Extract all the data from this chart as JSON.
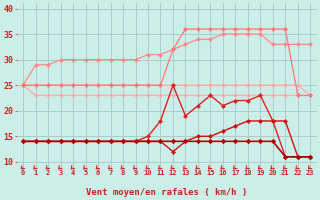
{
  "background_color": "#cceee8",
  "grid_color": "#aacccc",
  "xlim": [
    -0.5,
    23.5
  ],
  "ylim": [
    9,
    41
  ],
  "yticks": [
    10,
    15,
    20,
    25,
    30,
    35,
    40
  ],
  "xlabel": "Vent moyen/en rafales ( km/h )",
  "x_labels": [
    "0",
    "1",
    "2",
    "3",
    "4",
    "5",
    "6",
    "7",
    "8",
    "9",
    "10",
    "11",
    "12",
    "13",
    "14",
    "15",
    "16",
    "17",
    "18",
    "19",
    "20",
    "21",
    "22",
    "23"
  ],
  "series": [
    {
      "name": "light_flat_23",
      "color": "#ffaaaa",
      "lw": 0.9,
      "marker": "D",
      "ms": 2.0,
      "data_x": [
        0,
        1,
        2,
        3,
        4,
        5,
        6,
        7,
        8,
        9,
        10,
        11,
        12,
        13,
        14,
        15,
        16,
        17,
        18,
        19,
        20,
        21,
        22,
        23
      ],
      "data_y": [
        25,
        23,
        23,
        23,
        23,
        23,
        23,
        23,
        23,
        23,
        23,
        23,
        23,
        23,
        23,
        23,
        23,
        23,
        23,
        23,
        23,
        23,
        23,
        23
      ]
    },
    {
      "name": "light_flat_25",
      "color": "#ffaaaa",
      "lw": 0.9,
      "marker": "D",
      "ms": 2.0,
      "data_x": [
        0,
        1,
        2,
        3,
        4,
        5,
        6,
        7,
        8,
        9,
        10,
        11,
        12,
        13,
        14,
        15,
        16,
        17,
        18,
        19,
        20,
        21,
        22,
        23
      ],
      "data_y": [
        25,
        25,
        25,
        25,
        25,
        25,
        25,
        25,
        25,
        25,
        25,
        25,
        25,
        25,
        25,
        25,
        25,
        25,
        25,
        25,
        25,
        25,
        25,
        23
      ]
    },
    {
      "name": "rising_light",
      "color": "#ff8888",
      "lw": 0.9,
      "marker": "D",
      "ms": 2.0,
      "data_x": [
        0,
        1,
        2,
        3,
        4,
        5,
        6,
        7,
        8,
        9,
        10,
        11,
        12,
        13,
        14,
        15,
        16,
        17,
        18,
        19,
        20,
        21,
        22,
        23
      ],
      "data_y": [
        25,
        29,
        29,
        30,
        30,
        30,
        30,
        30,
        30,
        30,
        31,
        31,
        32,
        33,
        34,
        34,
        35,
        35,
        35,
        35,
        33,
        33,
        33,
        33
      ]
    },
    {
      "name": "spike_peak",
      "color": "#ff7777",
      "lw": 0.9,
      "marker": "D",
      "ms": 2.0,
      "data_x": [
        0,
        1,
        2,
        3,
        4,
        5,
        6,
        7,
        8,
        9,
        10,
        11,
        12,
        13,
        14,
        15,
        16,
        17,
        18,
        19,
        20,
        21,
        22,
        23
      ],
      "data_y": [
        25,
        25,
        25,
        25,
        25,
        25,
        25,
        25,
        25,
        25,
        25,
        25,
        32,
        36,
        36,
        36,
        36,
        36,
        36,
        36,
        36,
        36,
        23,
        23
      ]
    },
    {
      "name": "dark_volatile",
      "color": "#dd2222",
      "lw": 1.0,
      "marker": "D",
      "ms": 2.0,
      "data_x": [
        0,
        1,
        2,
        3,
        4,
        5,
        6,
        7,
        8,
        9,
        10,
        11,
        12,
        13,
        14,
        15,
        16,
        17,
        18,
        19,
        20,
        21,
        22,
        23
      ],
      "data_y": [
        14,
        14,
        14,
        14,
        14,
        14,
        14,
        14,
        14,
        14,
        15,
        18,
        25,
        19,
        21,
        23,
        21,
        22,
        22,
        23,
        18,
        11,
        11,
        11
      ]
    },
    {
      "name": "dark_rising2",
      "color": "#cc1111",
      "lw": 1.0,
      "marker": "D",
      "ms": 2.0,
      "data_x": [
        0,
        1,
        2,
        3,
        4,
        5,
        6,
        7,
        8,
        9,
        10,
        11,
        12,
        13,
        14,
        15,
        16,
        17,
        18,
        19,
        20,
        21,
        22,
        23
      ],
      "data_y": [
        14,
        14,
        14,
        14,
        14,
        14,
        14,
        14,
        14,
        14,
        14,
        14,
        12,
        14,
        15,
        15,
        16,
        17,
        18,
        18,
        18,
        18,
        11,
        11
      ]
    },
    {
      "name": "dark_flat14",
      "color": "#bb0000",
      "lw": 1.0,
      "marker": "D",
      "ms": 2.0,
      "data_x": [
        0,
        1,
        2,
        3,
        4,
        5,
        6,
        7,
        8,
        9,
        10,
        11,
        12,
        13,
        14,
        15,
        16,
        17,
        18,
        19,
        20,
        21,
        22,
        23
      ],
      "data_y": [
        14,
        14,
        14,
        14,
        14,
        14,
        14,
        14,
        14,
        14,
        14,
        14,
        14,
        14,
        14,
        14,
        14,
        14,
        14,
        14,
        14,
        11,
        11,
        11
      ]
    },
    {
      "name": "dark_flat14b",
      "color": "#aa0000",
      "lw": 0.9,
      "marker": "D",
      "ms": 2.0,
      "data_x": [
        0,
        1,
        2,
        3,
        4,
        5,
        6,
        7,
        8,
        9,
        10,
        11,
        12,
        13,
        14,
        15,
        16,
        17,
        18,
        19,
        20,
        21,
        22,
        23
      ],
      "data_y": [
        14,
        14,
        14,
        14,
        14,
        14,
        14,
        14,
        14,
        14,
        14,
        14,
        14,
        14,
        14,
        14,
        14,
        14,
        14,
        14,
        14,
        11,
        11,
        11
      ]
    }
  ],
  "arrow_color": "#cc2222",
  "axis_label_color": "#cc2222",
  "tick_color": "#cc2222"
}
